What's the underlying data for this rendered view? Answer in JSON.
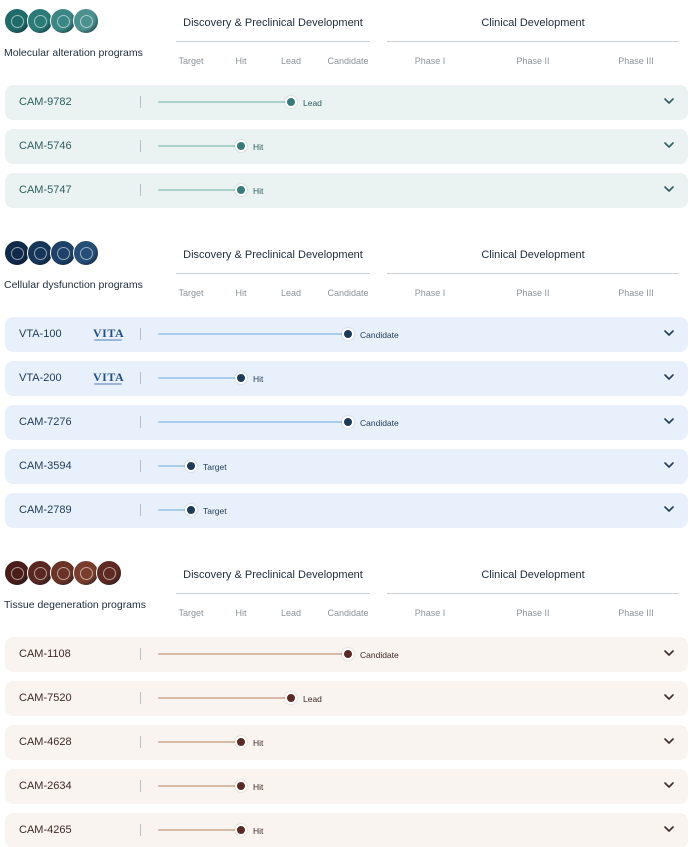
{
  "headers": {
    "discovery": "Discovery & Preclinical Development",
    "clinical": "Clinical Development",
    "stages": [
      "Target",
      "Hit",
      "Lead",
      "Candidate",
      "Phase I",
      "Phase II",
      "Phase III"
    ]
  },
  "logo_text": "VITA",
  "sections": [
    {
      "title": "Molecular alteration programs",
      "theme": "teal",
      "icon_colors": [
        "#1f6b6a",
        "#2a7a78",
        "#3a8785",
        "#4a918f"
      ],
      "programs": [
        {
          "name": "CAM-9782",
          "stage": "Lead",
          "stage_index": 2,
          "logo": false
        },
        {
          "name": "CAM-5746",
          "stage": "Hit",
          "stage_index": 1,
          "logo": false
        },
        {
          "name": "CAM-5747",
          "stage": "Hit",
          "stage_index": 1,
          "logo": false
        }
      ]
    },
    {
      "title": "Cellular dysfunction programs",
      "theme": "navy",
      "icon_colors": [
        "#0f2a4a",
        "#163659",
        "#1d4168",
        "#244d77"
      ],
      "programs": [
        {
          "name": "VTA-100",
          "stage": "Candidate",
          "stage_index": 3,
          "logo": true
        },
        {
          "name": "VTA-200",
          "stage": "Hit",
          "stage_index": 1,
          "logo": true
        },
        {
          "name": "CAM-7276",
          "stage": "Candidate",
          "stage_index": 3,
          "logo": false
        },
        {
          "name": "CAM-3594",
          "stage": "Target",
          "stage_index": 0,
          "logo": false
        },
        {
          "name": "CAM-2789",
          "stage": "Target",
          "stage_index": 0,
          "logo": false
        }
      ]
    },
    {
      "title": "Tissue degeneration programs",
      "theme": "brown",
      "icon_colors": [
        "#4a1d18",
        "#5a2820",
        "#6b3226",
        "#7a3d2c",
        "#5e2a22"
      ],
      "programs": [
        {
          "name": "CAM-1108",
          "stage": "Candidate",
          "stage_index": 3,
          "logo": false
        },
        {
          "name": "CAM-7520",
          "stage": "Lead",
          "stage_index": 2,
          "logo": false
        },
        {
          "name": "CAM-4628",
          "stage": "Hit",
          "stage_index": 1,
          "logo": false
        },
        {
          "name": "CAM-2634",
          "stage": "Hit",
          "stage_index": 1,
          "logo": false
        },
        {
          "name": "CAM-4265",
          "stage": "Hit",
          "stage_index": 1,
          "logo": false
        }
      ]
    }
  ]
}
